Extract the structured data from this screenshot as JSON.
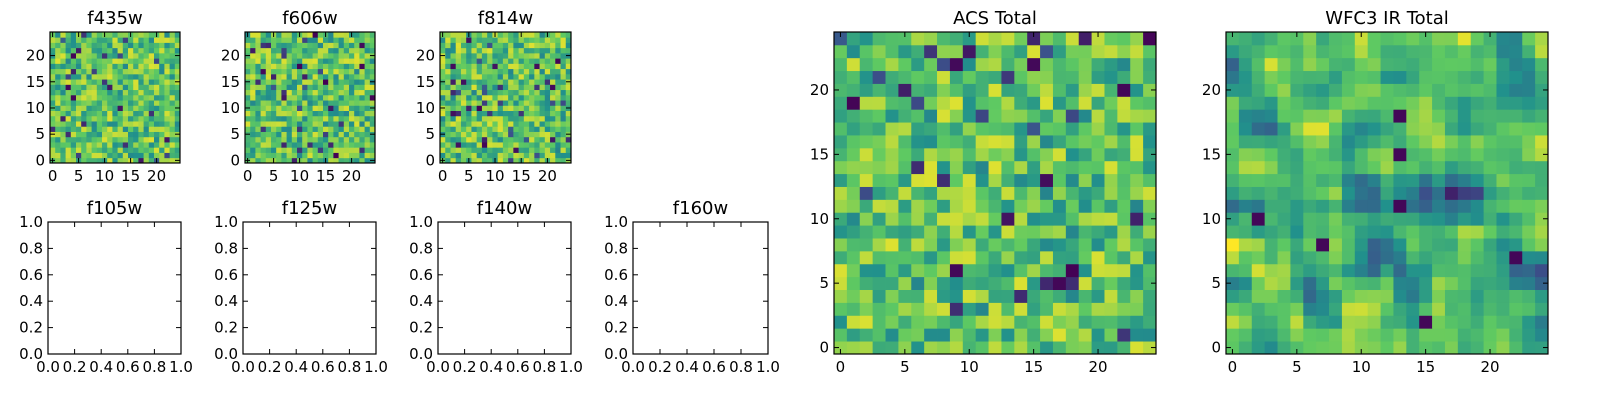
{
  "figure": {
    "background": "#ffffff"
  },
  "colormap": {
    "name": "viridis",
    "stops": [
      "#440154",
      "#3b528b",
      "#21918c",
      "#5ec962",
      "#fde725"
    ]
  },
  "chart_data": [
    {
      "id": "f435w",
      "type": "heatmap",
      "title": "f435w",
      "grid_size": 25,
      "seed": 435,
      "xlim": [
        -0.5,
        24.5
      ],
      "ylim": [
        -0.5,
        24.5
      ],
      "xticks": [
        0,
        5,
        10,
        15,
        20
      ],
      "yticks": [
        0,
        5,
        10,
        15,
        20
      ],
      "xtick_labels": [
        "0",
        "5",
        "10",
        "15",
        "20"
      ],
      "ytick_labels": [
        "0",
        "5",
        "10",
        "15",
        "20"
      ],
      "values_note": "pixel noise, mostly green-yellow with scattered dark pixels"
    },
    {
      "id": "f606w",
      "type": "heatmap",
      "title": "f606w",
      "grid_size": 25,
      "seed": 606,
      "xlim": [
        -0.5,
        24.5
      ],
      "ylim": [
        -0.5,
        24.5
      ],
      "xticks": [
        0,
        5,
        10,
        15,
        20
      ],
      "yticks": [
        0,
        5,
        10,
        15,
        20
      ],
      "xtick_labels": [
        "0",
        "5",
        "10",
        "15",
        "20"
      ],
      "ytick_labels": [
        "0",
        "5",
        "10",
        "15",
        "20"
      ]
    },
    {
      "id": "f814w",
      "type": "heatmap",
      "title": "f814w",
      "grid_size": 25,
      "seed": 814,
      "xlim": [
        -0.5,
        24.5
      ],
      "ylim": [
        -0.5,
        24.5
      ],
      "xticks": [
        0,
        5,
        10,
        15,
        20
      ],
      "yticks": [
        0,
        5,
        10,
        15,
        20
      ],
      "xtick_labels": [
        "0",
        "5",
        "10",
        "15",
        "20"
      ],
      "ytick_labels": [
        "0",
        "5",
        "10",
        "15",
        "20"
      ]
    },
    {
      "id": "f105w",
      "type": "empty",
      "title": "f105w",
      "xlim": [
        0,
        1
      ],
      "ylim": [
        0,
        1
      ],
      "xticks": [
        0,
        0.2,
        0.4,
        0.6,
        0.8,
        1.0
      ],
      "yticks": [
        0,
        0.2,
        0.4,
        0.6,
        0.8,
        1.0
      ],
      "xtick_labels": [
        "0.0",
        "0.2",
        "0.4",
        "0.6",
        "0.8",
        "1.0"
      ],
      "ytick_labels": [
        "0.0",
        "0.2",
        "0.4",
        "0.6",
        "0.8",
        "1.0"
      ]
    },
    {
      "id": "f125w",
      "type": "empty",
      "title": "f125w",
      "xlim": [
        0,
        1
      ],
      "ylim": [
        0,
        1
      ],
      "xticks": [
        0,
        0.2,
        0.4,
        0.6,
        0.8,
        1.0
      ],
      "yticks": [
        0,
        0.2,
        0.4,
        0.6,
        0.8,
        1.0
      ],
      "xtick_labels": [
        "0.0",
        "0.2",
        "0.4",
        "0.6",
        "0.8",
        "1.0"
      ],
      "ytick_labels": [
        "0.0",
        "0.2",
        "0.4",
        "0.6",
        "0.8",
        "1.0"
      ]
    },
    {
      "id": "f140w",
      "type": "empty",
      "title": "f140w",
      "xlim": [
        0,
        1
      ],
      "ylim": [
        0,
        1
      ],
      "xticks": [
        0,
        0.2,
        0.4,
        0.6,
        0.8,
        1.0
      ],
      "yticks": [
        0,
        0.2,
        0.4,
        0.6,
        0.8,
        1.0
      ],
      "xtick_labels": [
        "0.0",
        "0.2",
        "0.4",
        "0.6",
        "0.8",
        "1.0"
      ],
      "ytick_labels": [
        "0.0",
        "0.2",
        "0.4",
        "0.6",
        "0.8",
        "1.0"
      ]
    },
    {
      "id": "f160w",
      "type": "empty",
      "title": "f160w",
      "xlim": [
        0,
        1
      ],
      "ylim": [
        0,
        1
      ],
      "xticks": [
        0,
        0.2,
        0.4,
        0.6,
        0.8,
        1.0
      ],
      "yticks": [
        0,
        0.2,
        0.4,
        0.6,
        0.8,
        1.0
      ],
      "xtick_labels": [
        "0.0",
        "0.2",
        "0.4",
        "0.6",
        "0.8",
        "1.0"
      ],
      "ytick_labels": [
        "0.0",
        "0.2",
        "0.4",
        "0.6",
        "0.8",
        "1.0"
      ]
    },
    {
      "id": "acs_total",
      "type": "heatmap",
      "title": "ACS Total",
      "grid_size": 25,
      "seed": 1234,
      "xlim": [
        -0.5,
        24.5
      ],
      "ylim": [
        -0.5,
        24.5
      ],
      "xticks": [
        0,
        5,
        10,
        15,
        20
      ],
      "yticks": [
        0,
        5,
        10,
        15,
        20
      ],
      "xtick_labels": [
        "0",
        "5",
        "10",
        "15",
        "20"
      ],
      "ytick_labels": [
        "0",
        "5",
        "10",
        "15",
        "20"
      ]
    },
    {
      "id": "wfc3_ir_total",
      "type": "heatmap",
      "title": "WFC3 IR Total",
      "grid_size": 25,
      "seed": 3160,
      "smooth": true,
      "xlim": [
        -0.5,
        24.5
      ],
      "ylim": [
        -0.5,
        24.5
      ],
      "xticks": [
        0,
        5,
        10,
        15,
        20
      ],
      "yticks": [
        0,
        5,
        10,
        15,
        20
      ],
      "xtick_labels": [
        "0",
        "5",
        "10",
        "15",
        "20"
      ],
      "ytick_labels": [
        "0",
        "5",
        "10",
        "15",
        "20"
      ]
    }
  ]
}
